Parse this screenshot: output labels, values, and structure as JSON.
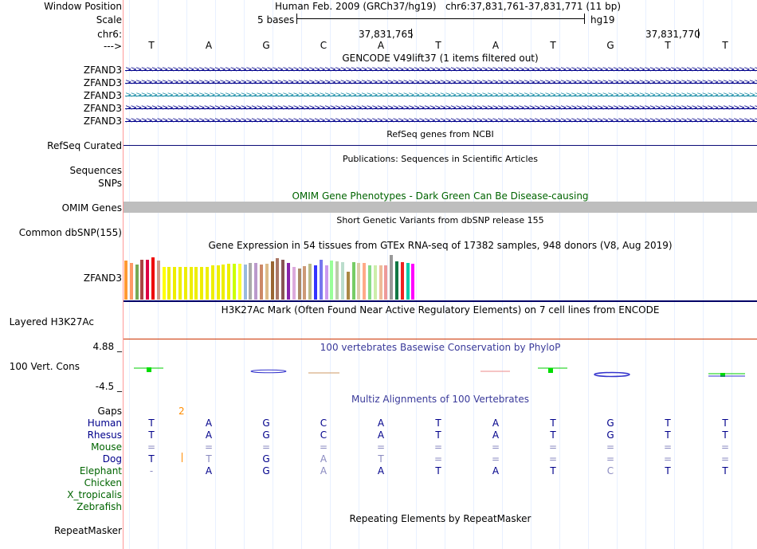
{
  "position_header": {
    "window_label": "Window Position",
    "window_text": "Human Feb. 2009 (GRCh37/hg19)   chr6:37,831,761-37,831,771 (11 bp)",
    "scale_label": "Scale",
    "scale_text": "5 bases",
    "assembly": "hg19",
    "chrom_label": "chr6:",
    "coord1": "37,831,765",
    "coord2": "37,831,770",
    "strand_label": "--->"
  },
  "bases": [
    "T",
    "A",
    "G",
    "C",
    "A",
    "T",
    "A",
    "T",
    "G",
    "T",
    "T"
  ],
  "gencode": {
    "title": "GENCODE V49lift37 (1 items filtered out)",
    "tracks": [
      {
        "label": "ZFAND3",
        "color": "#00008b"
      },
      {
        "label": "ZFAND3",
        "color": "#00008b"
      },
      {
        "label": "ZFAND3",
        "color": "#1e8fa8"
      },
      {
        "label": "ZFAND3",
        "color": "#00008b"
      },
      {
        "label": "ZFAND3",
        "color": "#00008b"
      }
    ],
    "arrow_glyph": "&gt;"
  },
  "refseq": {
    "title": "RefSeq genes from NCBI",
    "label": "RefSeq Curated",
    "color": "#0c0c78"
  },
  "publications": {
    "title": "Publications: Sequences in Scientific Articles",
    "label1": "Sequences",
    "label2": "SNPs"
  },
  "omim": {
    "title": "OMIM Gene Phenotypes - Dark Green Can Be Disease-causing",
    "label": "OMIM Genes",
    "color": "#006400",
    "bar_color": "#bebebe"
  },
  "dbsnp": {
    "title": "Short Genetic Variants from dbSNP release 155",
    "label": "Common dbSNP(155)"
  },
  "gtex": {
    "title": "Gene Expression in 54 tissues from GTEx RNA-seq of 17382 samples, 948 donors (V8, Aug 2019)",
    "label": "ZFAND3",
    "levels": [
      0.88,
      0.82,
      0.78,
      0.9,
      0.9,
      0.95,
      0.87,
      0.74,
      0.74,
      0.74,
      0.74,
      0.74,
      0.74,
      0.74,
      0.74,
      0.74,
      0.77,
      0.77,
      0.79,
      0.8,
      0.8,
      0.8,
      0.79,
      0.82,
      0.82,
      0.79,
      0.8,
      0.85,
      0.92,
      0.9,
      0.83,
      0.74,
      0.7,
      0.75,
      0.8,
      0.76,
      0.9,
      0.77,
      0.88,
      0.86,
      0.84,
      0.63,
      0.84,
      0.83,
      0.83,
      0.76,
      0.76,
      0.76,
      0.76,
      1.0,
      0.85,
      0.84,
      0.82,
      0.8
    ],
    "colors": [
      "#ff9933",
      "#ff9966",
      "#77aa55",
      "#aa4444",
      "#dd0044",
      "#ee0000",
      "#cc9988",
      "#ffff00",
      "#eeee00",
      "#eeee00",
      "#eeee00",
      "#eeee00",
      "#eeee00",
      "#eeee00",
      "#eeee00",
      "#eeee00",
      "#eeee00",
      "#eeee00",
      "#eeee00",
      "#eeee00",
      "#ccff00",
      "#ffff33",
      "#99bbdd",
      "#aaaaaa",
      "#bb99cc",
      "#cc8866",
      "#ddbb88",
      "#996633",
      "#aa7766",
      "#885555",
      "#8822aa",
      "#ddaadd",
      "#aa8866",
      "#cc9977",
      "#bbbb88",
      "#3333ff",
      "#7777ee",
      "#cc99ee",
      "#99ff99",
      "#bbccaa",
      "#bbddcc",
      "#aa8844",
      "#77cc66",
      "#ddccaa",
      "#ffaa88",
      "#88dd88",
      "#cceeaa",
      "#eebb99",
      "#ee9999",
      "#999999",
      "#117744",
      "#ee2222",
      "#00ccaa",
      "#ff00ff"
    ]
  },
  "h3k27ac": {
    "title": "H3K27Ac Mark (Often Found Near Active Regulatory Elements) on 7 cell lines from ENCODE",
    "label": "Layered H3K27Ac",
    "line_color": "#cc3300"
  },
  "phylop": {
    "title": "100 vertebrates Basewise Conservation by PhyloP",
    "label": "100 Vert. Cons",
    "top_value": "4.88 _",
    "bottom_value": "-4.5 _",
    "title_color": "#3a3a9a",
    "top_color": "#3a3a9a",
    "bottom_color": "#8b2500"
  },
  "multiz": {
    "title": "Multiz Alignments of 100 Vertebrates",
    "gaps_label": "Gaps",
    "gaps_value": "2",
    "gaps_color": "#ff8c00",
    "species": [
      {
        "name": "Human",
        "color": "#00008b",
        "row": [
          "T",
          "A",
          "G",
          "C",
          "A",
          "T",
          "A",
          "T",
          "G",
          "T",
          "T"
        ]
      },
      {
        "name": "Rhesus",
        "color": "#00008b",
        "row": [
          "T",
          "A",
          "G",
          "C",
          "A",
          "T",
          "A",
          "T",
          "G",
          "T",
          "T"
        ]
      },
      {
        "name": "Mouse",
        "color": "#006400",
        "row": [
          "=",
          "=",
          "=",
          "=",
          "=",
          "=",
          "=",
          "=",
          "=",
          "=",
          "="
        ]
      },
      {
        "name": "Dog",
        "color": "#00008b",
        "row": [
          "T",
          "T",
          "G",
          "A",
          "T",
          "=",
          "=",
          "=",
          "=",
          "=",
          "="
        ]
      },
      {
        "name": "Elephant",
        "color": "#006400",
        "row": [
          "-",
          "A",
          "G",
          "A",
          "A",
          "T",
          "A",
          "T",
          "C",
          "T",
          "T"
        ]
      },
      {
        "name": "Chicken",
        "color": "#006400",
        "row": []
      },
      {
        "name": "X_tropicalis",
        "color": "#006400",
        "row": []
      },
      {
        "name": "Zebrafish",
        "color": "#006400",
        "row": []
      }
    ]
  },
  "repeatmasker": {
    "title": "Repeating Elements by RepeatMasker",
    "label": "RepeatMasker"
  }
}
